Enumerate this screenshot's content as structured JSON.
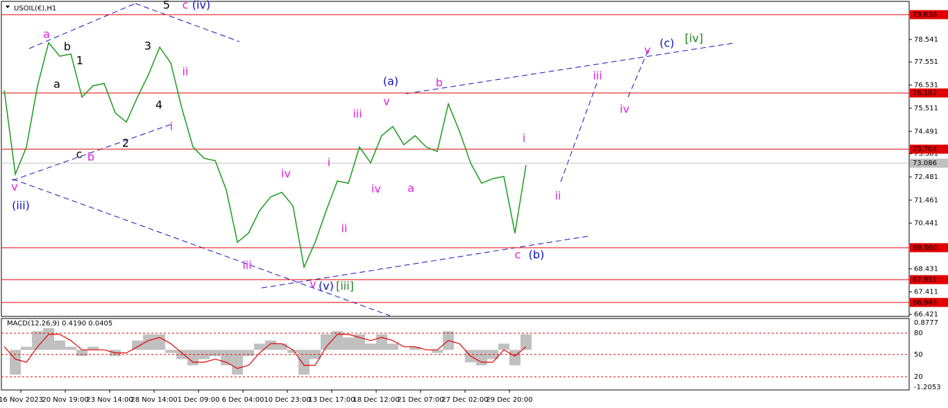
{
  "chart_data": [
    {
      "type": "line",
      "title": "USOIL(€),H1",
      "color": "#1a9a1a",
      "xlim": [
        -0.47,
        20.0
      ],
      "xticks": [
        {
          "value": 0,
          "label": "16 Nov 2023"
        },
        {
          "value": 1,
          "label": "20 Nov 19:00"
        },
        {
          "value": 2,
          "label": "23 Nov 14:00"
        },
        {
          "value": 3,
          "label": "28 Nov 14:00"
        },
        {
          "value": 4,
          "label": "1 Dec 09:00"
        },
        {
          "value": 5,
          "label": "6 Dec 04:00"
        },
        {
          "value": 6,
          "label": "10 Dec 23:00"
        },
        {
          "value": 7,
          "label": "13 Dec 17:00"
        },
        {
          "value": 8,
          "label": "18 Dec 12:00"
        },
        {
          "value": 9,
          "label": "21 Dec 07:00"
        },
        {
          "value": 10,
          "label": "27 Dec 02:00"
        },
        {
          "value": 11,
          "label": "29 Dec 20:00"
        }
      ],
      "ylim": [
        66.33,
        80.22
      ],
      "yticks": [
        78.541,
        77.551,
        76.531,
        75.511,
        74.491,
        73.501,
        72.481,
        71.461,
        70.441,
        68.431,
        67.411,
        66.421
      ],
      "levels": [
        79.636,
        76.182,
        73.704,
        {
          "value": 69.36,
          "label": "69.360"
        },
        67.951,
        66.946
      ],
      "level_color": "#e00000",
      "current_price": 73.086,
      "x": [
        -0.375,
        -0.125,
        0.125,
        0.375,
        0.625,
        0.875,
        1.125,
        1.375,
        1.625,
        1.875,
        2.125,
        2.375,
        2.625,
        2.875,
        3.125,
        3.375,
        3.625,
        3.875,
        4.125,
        4.375,
        4.625,
        4.875,
        5.125,
        5.375,
        5.625,
        5.875,
        6.125,
        6.375,
        6.625,
        6.875,
        7.125,
        7.375,
        7.625,
        7.875,
        8.125,
        8.375,
        8.625,
        8.875,
        9.125,
        9.375,
        9.625,
        9.875,
        10.125,
        10.375,
        10.625,
        10.875,
        11.125,
        11.375
      ],
      "values": [
        76.3,
        72.6,
        73.8,
        76.5,
        78.4,
        77.8,
        77.9,
        76.0,
        76.5,
        76.6,
        75.3,
        74.9,
        76.0,
        77.0,
        78.2,
        77.5,
        75.5,
        73.8,
        73.3,
        73.2,
        71.9,
        69.6,
        70.0,
        71.0,
        71.6,
        71.8,
        71.2,
        68.5,
        69.6,
        71.0,
        72.3,
        72.2,
        73.8,
        73.1,
        74.3,
        74.7,
        73.9,
        74.3,
        73.8,
        73.6,
        75.7,
        74.5,
        73.1,
        72.2,
        72.4,
        72.5,
        70.0,
        73.0
      ],
      "annotations": [
        {
          "text": "5",
          "color": "#000000"
        },
        {
          "text": "c",
          "color": "#e020e0"
        },
        {
          "text": "(iv)",
          "color": "#1010c0"
        },
        {
          "text": "a",
          "color": "#e020e0"
        },
        {
          "text": "b",
          "color": "#000000"
        },
        {
          "text": "1",
          "color": "#000000"
        },
        {
          "text": "3",
          "color": "#000000"
        },
        {
          "text": "a",
          "color": "#000000"
        },
        {
          "text": "4",
          "color": "#000000"
        },
        {
          "text": "ii",
          "color": "#e020e0"
        },
        {
          "text": "i",
          "color": "#e020e0"
        },
        {
          "text": "c",
          "color": "#000000"
        },
        {
          "text": "b",
          "color": "#e020e0"
        },
        {
          "text": "2",
          "color": "#000000"
        },
        {
          "text": "v",
          "color": "#e020e0"
        },
        {
          "text": "(iii)",
          "color": "#1010c0"
        },
        {
          "text": "iv",
          "color": "#e020e0"
        },
        {
          "text": "iii",
          "color": "#e020e0"
        },
        {
          "text": "v",
          "color": "#e020e0"
        },
        {
          "text": "(v)",
          "color": "#1010c0"
        },
        {
          "text": "[iii]",
          "color": "#208020"
        },
        {
          "text": "(a)",
          "color": "#1010c0"
        },
        {
          "text": "v",
          "color": "#e020e0"
        },
        {
          "text": "iii",
          "color": "#e020e0"
        },
        {
          "text": "i",
          "color": "#e020e0"
        },
        {
          "text": "iv",
          "color": "#e020e0"
        },
        {
          "text": "a",
          "color": "#e020e0"
        },
        {
          "text": "ii",
          "color": "#e020e0"
        },
        {
          "text": "b",
          "color": "#e020e0"
        },
        {
          "text": "i",
          "color": "#e020e0"
        },
        {
          "text": "c",
          "color": "#e020e0"
        },
        {
          "text": "(b)",
          "color": "#1010c0"
        },
        {
          "text": "ii",
          "color": "#e020e0"
        },
        {
          "text": "iii",
          "color": "#e020e0"
        },
        {
          "text": "iv",
          "color": "#e020e0"
        },
        {
          "text": "v",
          "color": "#e020e0"
        },
        {
          "text": "(c)",
          "color": "#1010c0"
        },
        {
          "text": "[iv]",
          "color": "#208020"
        }
      ]
    },
    {
      "type": "bar",
      "title": "MACD(12,26,9) 0.4190 0.0405",
      "color": "#c0c0c0",
      "xlim": [
        -0.47,
        20.0
      ],
      "ylim": [
        -1.295,
        1.012
      ],
      "yticks": [
        0.8777,
        {
          "value": 0.54,
          "label": "80"
        },
        {
          "value": -0.15,
          "label": "50"
        },
        {
          "value": -0.87,
          "label": "20"
        },
        -1.2053
      ],
      "x": [
        -0.375,
        -0.125,
        0.125,
        0.375,
        0.625,
        0.875,
        1.125,
        1.375,
        1.625,
        1.875,
        2.125,
        2.375,
        2.625,
        2.875,
        3.125,
        3.375,
        3.625,
        3.875,
        4.125,
        4.375,
        4.625,
        4.875,
        5.125,
        5.375,
        5.625,
        5.875,
        6.125,
        6.375,
        6.625,
        6.875,
        7.125,
        7.375,
        7.625,
        7.875,
        8.125,
        8.375,
        8.625,
        8.875,
        9.125,
        9.375,
        9.625,
        9.875,
        10.125,
        10.375,
        10.625,
        10.875,
        11.125,
        11.375
      ],
      "values": [
        0.0,
        -0.8,
        0.1,
        0.6,
        0.7,
        0.3,
        0.1,
        -0.2,
        0.1,
        0.0,
        -0.2,
        0.0,
        0.3,
        0.5,
        0.5,
        -0.1,
        -0.3,
        -0.5,
        -0.3,
        -0.2,
        -0.5,
        -0.8,
        -0.2,
        0.2,
        0.3,
        0.2,
        -0.1,
        -0.8,
        -0.3,
        0.5,
        0.6,
        0.4,
        0.5,
        0.2,
        0.5,
        0.2,
        0.0,
        0.1,
        0.0,
        -0.1,
        0.6,
        0.0,
        -0.4,
        -0.5,
        -0.3,
        0.2,
        -0.5,
        0.5
      ],
      "signal": {
        "color": "#e00000",
        "values": [
          0.1,
          -0.3,
          -0.4,
          0.1,
          0.5,
          0.5,
          0.3,
          0.0,
          0.0,
          0.0,
          -0.1,
          -0.1,
          0.1,
          0.3,
          0.4,
          0.2,
          -0.1,
          -0.4,
          -0.4,
          -0.3,
          -0.4,
          -0.6,
          -0.5,
          -0.1,
          0.2,
          0.2,
          0.0,
          -0.5,
          -0.5,
          0.1,
          0.5,
          0.5,
          0.4,
          0.3,
          0.4,
          0.3,
          0.1,
          0.1,
          0.0,
          0.0,
          0.3,
          0.2,
          -0.2,
          -0.4,
          -0.4,
          0.0,
          -0.2,
          0.1
        ]
      }
    }
  ]
}
